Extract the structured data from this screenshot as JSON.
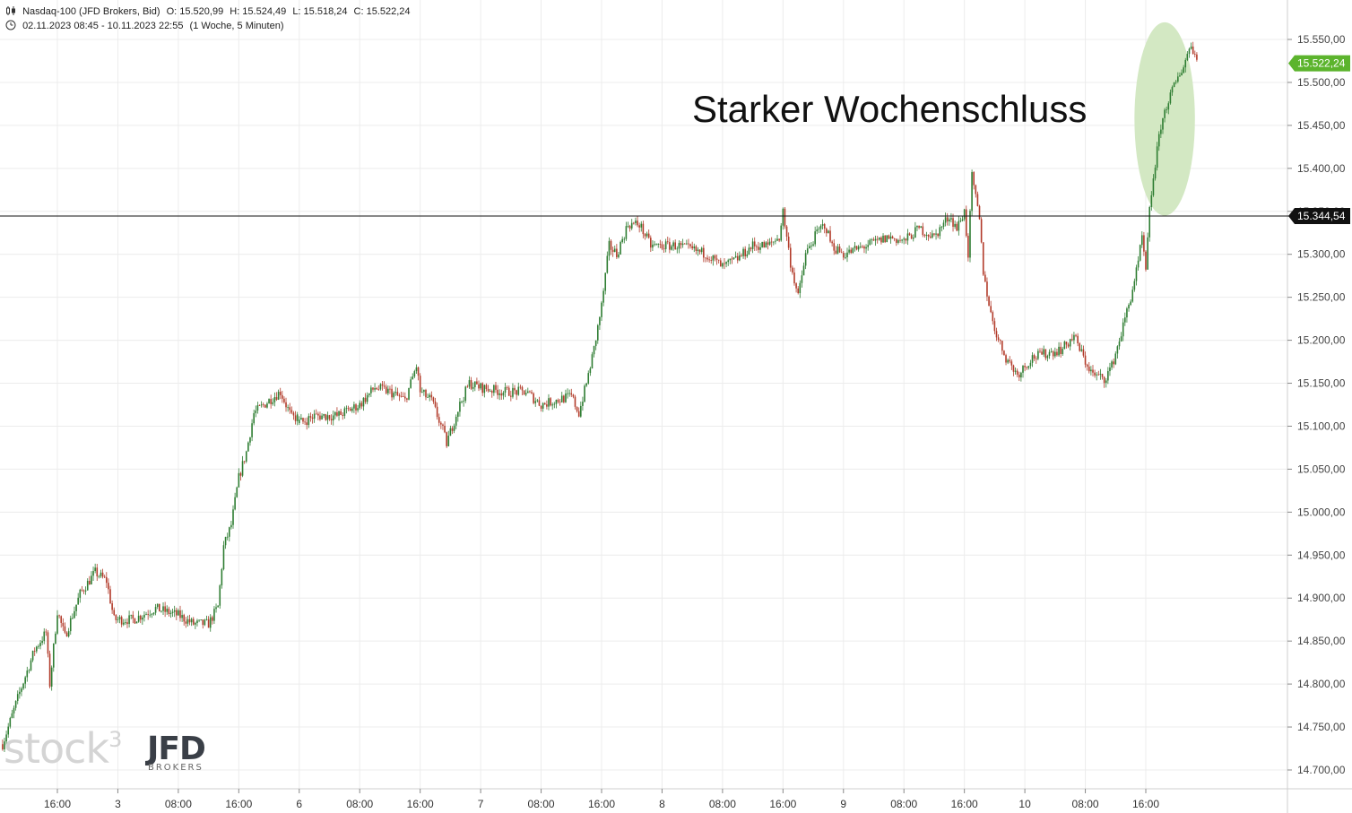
{
  "header": {
    "instrument": "Nasdaq-100 (JFD Brokers, Bid)",
    "open": "O: 15.520,99",
    "high": "H: 15.524,49",
    "low": "L: 15.518,24",
    "close": "C: 15.522,24",
    "range": "02.11.2023 08:45 - 10.11.2023 22:55",
    "period": "(1 Woche, 5 Minuten)",
    "icons": [
      "candlestick-icon",
      "clock-icon"
    ]
  },
  "annotation": {
    "text": "Starker Wochenschluss",
    "highlight_color": "#d3e8c3"
  },
  "logos": {
    "stock3": "stock",
    "stock3_sup": "3",
    "jfd": "JFD",
    "jfd_sub": "BROKERS"
  },
  "colors": {
    "up": "#2e7d32",
    "down": "#b23b2a",
    "last_price_badge": "#5cb42d",
    "level_badge": "#111111",
    "grid": "#ececec"
  },
  "chart_data": {
    "type": "candlestick",
    "y_axis": {
      "ylim": [
        14680,
        15570
      ],
      "ticks": [
        14700,
        14750,
        14800,
        14850,
        14900,
        14950,
        15000,
        15050,
        15100,
        15150,
        15200,
        15250,
        15300,
        15350,
        15400,
        15450,
        15500,
        15550
      ],
      "tick_labels": [
        "14.700,00",
        "14.750,00",
        "14.800,00",
        "14.850,00",
        "14.900,00",
        "14.950,00",
        "15.000,00",
        "15.050,00",
        "15.100,00",
        "15.150,00",
        "15.200,00",
        "15.250,00",
        "15.300,00",
        "15.350,00",
        "15.400,00",
        "15.450,00",
        "15.500,00",
        "15.550,00"
      ]
    },
    "x_axis": {
      "xlim": [
        "2023-11-02 08:45",
        "2023-11-10 22:55"
      ],
      "ticks": [
        {
          "t": "2023-11-02 16:00",
          "label": "16:00"
        },
        {
          "t": "2023-11-03 00:00",
          "label": "3"
        },
        {
          "t": "2023-11-03 08:00",
          "label": "08:00"
        },
        {
          "t": "2023-11-03 16:00",
          "label": "16:00"
        },
        {
          "t": "2023-11-06 00:00",
          "label": "6"
        },
        {
          "t": "2023-11-06 08:00",
          "label": "08:00"
        },
        {
          "t": "2023-11-06 16:00",
          "label": "16:00"
        },
        {
          "t": "2023-11-07 00:00",
          "label": "7"
        },
        {
          "t": "2023-11-07 08:00",
          "label": "08:00"
        },
        {
          "t": "2023-11-07 16:00",
          "label": "16:00"
        },
        {
          "t": "2023-11-08 00:00",
          "label": "8"
        },
        {
          "t": "2023-11-08 08:00",
          "label": "08:00"
        },
        {
          "t": "2023-11-08 16:00",
          "label": "16:00"
        },
        {
          "t": "2023-11-09 00:00",
          "label": "9"
        },
        {
          "t": "2023-11-09 08:00",
          "label": "08:00"
        },
        {
          "t": "2023-11-09 16:00",
          "label": "16:00"
        },
        {
          "t": "2023-11-10 00:00",
          "label": "10"
        },
        {
          "t": "2023-11-10 08:00",
          "label": "08:00"
        },
        {
          "t": "2023-11-10 16:00",
          "label": "16:00"
        }
      ]
    },
    "grid": true,
    "price_path": [
      {
        "t": "2023-11-02 08:45",
        "v": 14730
      },
      {
        "t": "2023-11-02 11:00",
        "v": 14790
      },
      {
        "t": "2023-11-02 13:00",
        "v": 14840
      },
      {
        "t": "2023-11-02 14:30",
        "v": 14860
      },
      {
        "t": "2023-11-02 15:00",
        "v": 14800
      },
      {
        "t": "2023-11-02 16:00",
        "v": 14885
      },
      {
        "t": "2023-11-02 17:00",
        "v": 14855
      },
      {
        "t": "2023-11-02 19:00",
        "v": 14905
      },
      {
        "t": "2023-11-02 21:00",
        "v": 14930
      },
      {
        "t": "2023-11-02 22:30",
        "v": 14920
      },
      {
        "t": "2023-11-02 23:30",
        "v": 14875
      },
      {
        "t": "2023-11-03 02:00",
        "v": 14875
      },
      {
        "t": "2023-11-03 05:00",
        "v": 14888
      },
      {
        "t": "2023-11-03 08:00",
        "v": 14880
      },
      {
        "t": "2023-11-03 10:00",
        "v": 14870
      },
      {
        "t": "2023-11-03 12:00",
        "v": 14870
      },
      {
        "t": "2023-11-03 13:15",
        "v": 14890
      },
      {
        "t": "2023-11-03 14:00",
        "v": 14960
      },
      {
        "t": "2023-11-03 15:00",
        "v": 14985
      },
      {
        "t": "2023-11-03 16:00",
        "v": 15040
      },
      {
        "t": "2023-11-03 17:00",
        "v": 15070
      },
      {
        "t": "2023-11-03 18:00",
        "v": 15115
      },
      {
        "t": "2023-11-03 20:00",
        "v": 15130
      },
      {
        "t": "2023-11-03 21:30",
        "v": 15140
      },
      {
        "t": "2023-11-03 23:00",
        "v": 15110
      },
      {
        "t": "2023-11-06 00:30",
        "v": 15105
      },
      {
        "t": "2023-11-06 02:00",
        "v": 15112
      },
      {
        "t": "2023-11-06 05:00",
        "v": 15112
      },
      {
        "t": "2023-11-06 08:00",
        "v": 15125
      },
      {
        "t": "2023-11-06 10:00",
        "v": 15145
      },
      {
        "t": "2023-11-06 12:00",
        "v": 15140
      },
      {
        "t": "2023-11-06 14:00",
        "v": 15130
      },
      {
        "t": "2023-11-06 15:30",
        "v": 15170
      },
      {
        "t": "2023-11-06 16:00",
        "v": 15140
      },
      {
        "t": "2023-11-06 17:30",
        "v": 15130
      },
      {
        "t": "2023-11-06 19:00",
        "v": 15095
      },
      {
        "t": "2023-11-06 19:30",
        "v": 15080
      },
      {
        "t": "2023-11-06 21:00",
        "v": 15120
      },
      {
        "t": "2023-11-06 22:30",
        "v": 15150
      },
      {
        "t": "2023-11-07 00:00",
        "v": 15145
      },
      {
        "t": "2023-11-07 03:00",
        "v": 15140
      },
      {
        "t": "2023-11-07 06:00",
        "v": 15140
      },
      {
        "t": "2023-11-07 08:00",
        "v": 15125
      },
      {
        "t": "2023-11-07 10:00",
        "v": 15130
      },
      {
        "t": "2023-11-07 12:00",
        "v": 15135
      },
      {
        "t": "2023-11-07 13:00",
        "v": 15115
      },
      {
        "t": "2023-11-07 14:00",
        "v": 15150
      },
      {
        "t": "2023-11-07 15:00",
        "v": 15190
      },
      {
        "t": "2023-11-07 16:00",
        "v": 15240
      },
      {
        "t": "2023-11-07 17:00",
        "v": 15310
      },
      {
        "t": "2023-11-07 18:00",
        "v": 15300
      },
      {
        "t": "2023-11-07 19:30",
        "v": 15335
      },
      {
        "t": "2023-11-07 21:00",
        "v": 15335
      },
      {
        "t": "2023-11-07 22:30",
        "v": 15310
      },
      {
        "t": "2023-11-08 02:00",
        "v": 15310
      },
      {
        "t": "2023-11-08 06:00",
        "v": 15300
      },
      {
        "t": "2023-11-08 08:00",
        "v": 15285
      },
      {
        "t": "2023-11-08 10:00",
        "v": 15295
      },
      {
        "t": "2023-11-08 12:00",
        "v": 15310
      },
      {
        "t": "2023-11-08 14:00",
        "v": 15310
      },
      {
        "t": "2023-11-08 15:30",
        "v": 15320
      },
      {
        "t": "2023-11-08 16:00",
        "v": 15350
      },
      {
        "t": "2023-11-08 17:00",
        "v": 15290
      },
      {
        "t": "2023-11-08 18:00",
        "v": 15250
      },
      {
        "t": "2023-11-08 19:00",
        "v": 15300
      },
      {
        "t": "2023-11-08 20:30",
        "v": 15325
      },
      {
        "t": "2023-11-08 21:30",
        "v": 15335
      },
      {
        "t": "2023-11-08 22:30",
        "v": 15310
      },
      {
        "t": "2023-11-09 00:00",
        "v": 15300
      },
      {
        "t": "2023-11-09 03:00",
        "v": 15310
      },
      {
        "t": "2023-11-09 06:00",
        "v": 15320
      },
      {
        "t": "2023-11-09 08:00",
        "v": 15315
      },
      {
        "t": "2023-11-09 10:00",
        "v": 15330
      },
      {
        "t": "2023-11-09 12:00",
        "v": 15320
      },
      {
        "t": "2023-11-09 14:00",
        "v": 15345
      },
      {
        "t": "2023-11-09 15:00",
        "v": 15330
      },
      {
        "t": "2023-11-09 16:00",
        "v": 15350
      },
      {
        "t": "2023-11-09 16:30",
        "v": 15300
      },
      {
        "t": "2023-11-09 17:00",
        "v": 15390
      },
      {
        "t": "2023-11-09 18:00",
        "v": 15340
      },
      {
        "t": "2023-11-09 18:30",
        "v": 15280
      },
      {
        "t": "2023-11-09 19:30",
        "v": 15230
      },
      {
        "t": "2023-11-09 20:30",
        "v": 15200
      },
      {
        "t": "2023-11-09 21:30",
        "v": 15180
      },
      {
        "t": "2023-11-09 23:00",
        "v": 15160
      },
      {
        "t": "2023-11-10 01:00",
        "v": 15180
      },
      {
        "t": "2023-11-10 03:00",
        "v": 15185
      },
      {
        "t": "2023-11-10 05:00",
        "v": 15190
      },
      {
        "t": "2023-11-10 06:30",
        "v": 15205
      },
      {
        "t": "2023-11-10 08:00",
        "v": 15175
      },
      {
        "t": "2023-11-10 09:00",
        "v": 15160
      },
      {
        "t": "2023-11-10 10:30",
        "v": 15155
      },
      {
        "t": "2023-11-10 11:30",
        "v": 15170
      },
      {
        "t": "2023-11-10 12:30",
        "v": 15200
      },
      {
        "t": "2023-11-10 14:00",
        "v": 15250
      },
      {
        "t": "2023-11-10 15:00",
        "v": 15290
      },
      {
        "t": "2023-11-10 15:30",
        "v": 15320
      },
      {
        "t": "2023-11-10 16:00",
        "v": 15280
      },
      {
        "t": "2023-11-10 16:30",
        "v": 15350
      },
      {
        "t": "2023-11-10 17:00",
        "v": 15390
      },
      {
        "t": "2023-11-10 18:00",
        "v": 15450
      },
      {
        "t": "2023-11-10 19:00",
        "v": 15480
      },
      {
        "t": "2023-11-10 20:00",
        "v": 15500
      },
      {
        "t": "2023-11-10 21:00",
        "v": 15520
      },
      {
        "t": "2023-11-10 22:00",
        "v": 15545
      },
      {
        "t": "2023-11-10 22:55",
        "v": 15522
      }
    ],
    "levels": [
      {
        "value": 15344.54,
        "label": "15.344,54",
        "style": "horizontal-line"
      }
    ],
    "last_price": {
      "value": 15522.24,
      "label": "15.522,24"
    },
    "highlight": {
      "t_from": "2023-11-10 14:30",
      "t_to": "2023-11-10 22:30",
      "v_from": 15345,
      "v_to": 15570
    }
  }
}
